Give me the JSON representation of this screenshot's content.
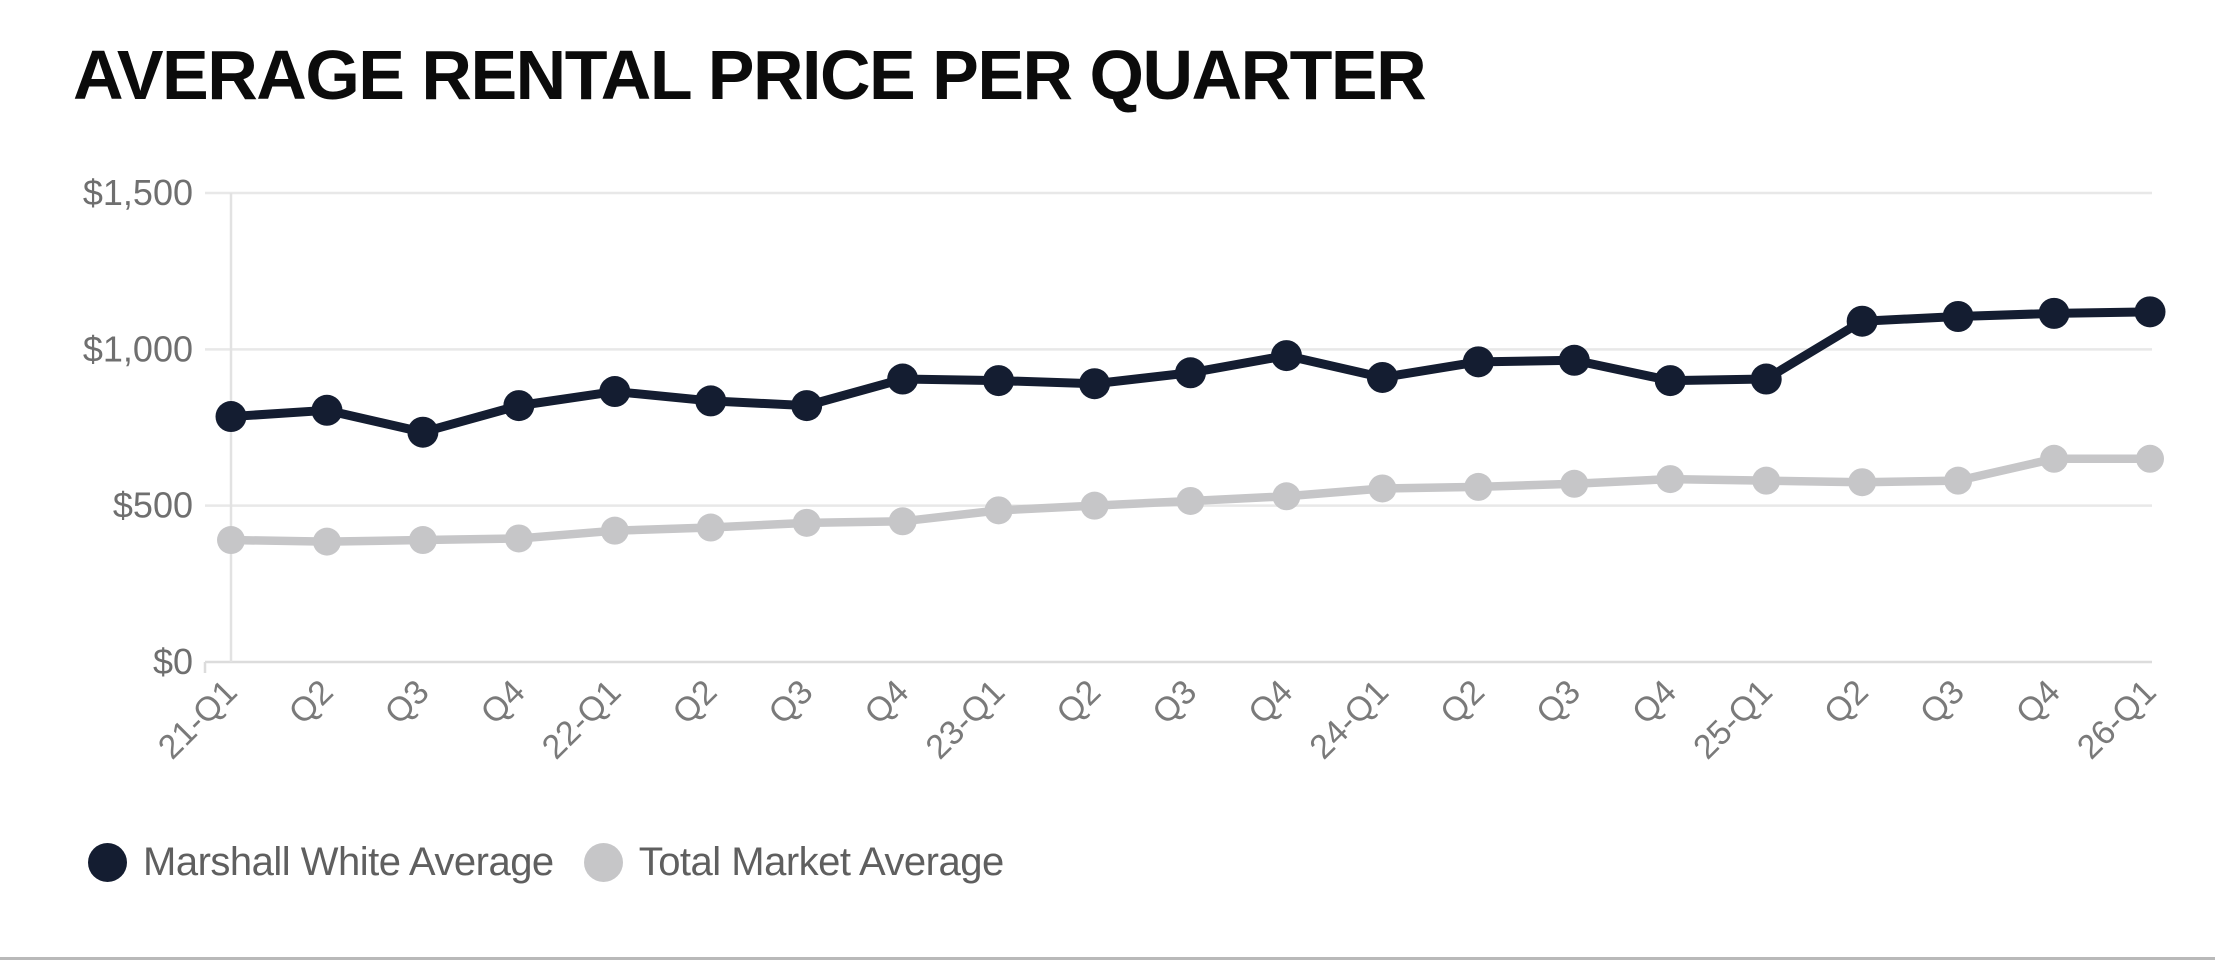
{
  "title": "AVERAGE RENTAL PRICE PER QUARTER",
  "colors": {
    "navy": "#141d31",
    "gray": "#c6c6c8",
    "grid": "#e8e8e8",
    "axis_line": "#dcdcdc",
    "boundary_line": "#e2e2e2",
    "y_label_text": "#6f6f6f",
    "x_label_text": "#7a7a7a",
    "legend_text": "#5f5f5f",
    "title_text": "#0b0b0b",
    "divider": "#b9b9b9",
    "background": "#ffffff"
  },
  "chart_data": {
    "type": "line",
    "title": "AVERAGE RENTAL PRICE PER QUARTER",
    "categories": [
      "21-Q1",
      "Q2",
      "Q3",
      "Q4",
      "22-Q1",
      "Q2",
      "Q3",
      "Q4",
      "23-Q1",
      "Q2",
      "Q3",
      "Q4",
      "24-Q1",
      "Q2",
      "Q3",
      "Q4",
      "25-Q1",
      "Q2",
      "Q3",
      "Q4",
      "26-Q1"
    ],
    "series": [
      {
        "name": "Marshall White Average",
        "color_key": "navy",
        "values": [
          785,
          805,
          735,
          820,
          865,
          835,
          820,
          905,
          900,
          890,
          925,
          980,
          910,
          960,
          965,
          900,
          905,
          1090,
          1105,
          1115,
          1120
        ]
      },
      {
        "name": "Total Market Average",
        "color_key": "gray",
        "values": [
          390,
          385,
          390,
          395,
          420,
          430,
          445,
          450,
          485,
          500,
          515,
          530,
          555,
          560,
          570,
          585,
          580,
          575,
          580,
          650,
          650
        ]
      }
    ],
    "y_ticks": [
      {
        "label": "$0",
        "value": 0
      },
      {
        "label": "$500",
        "value": 500
      },
      {
        "label": "$1,000",
        "value": 1000
      },
      {
        "label": "$1,500",
        "value": 1500
      }
    ],
    "ylim": [
      0,
      1500
    ],
    "xlabel": "",
    "ylabel": "",
    "grid": "horizontal",
    "legend_position": "bottom-left"
  }
}
